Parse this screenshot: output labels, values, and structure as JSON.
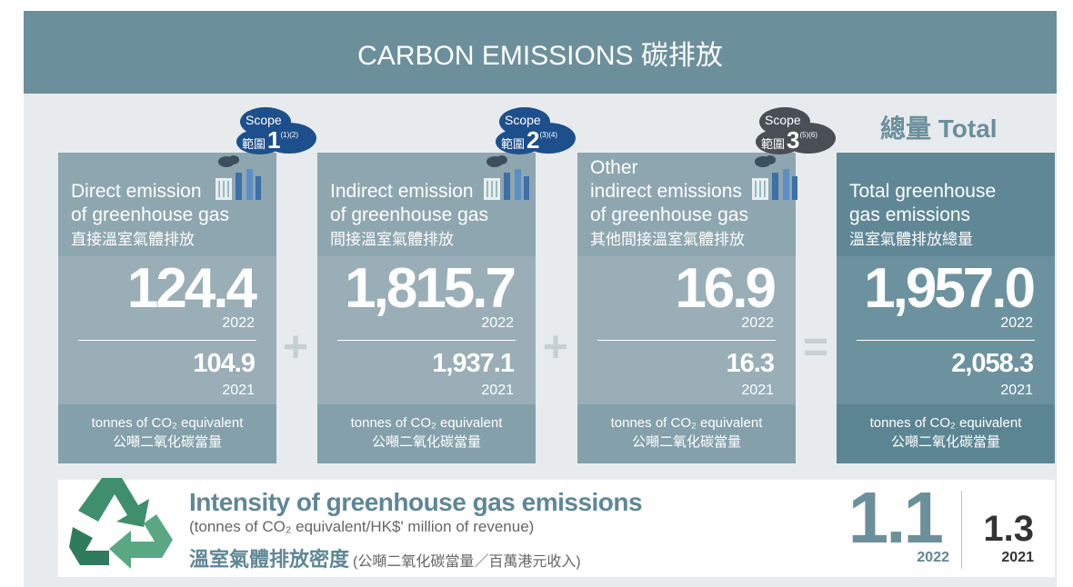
{
  "header": {
    "title": "CARBON EMISSIONS 碳排放"
  },
  "total_heading": "總量 Total",
  "cards": [
    {
      "scope": {
        "label": "Scope",
        "label_cn": "範圍",
        "number": "1",
        "notes": "(1)(2)"
      },
      "title_lines": [
        "Direct emission",
        "of greenhouse gas"
      ],
      "title_cn": "直接溫室氣體排放",
      "value_current": "124.4",
      "year_current": "2022",
      "value_previous": "104.9",
      "year_previous": "2021",
      "unit": "tonnes of CO₂ equivalent",
      "unit_cn": "公噸二氧化碳當量"
    },
    {
      "scope": {
        "label": "Scope",
        "label_cn": "範圍",
        "number": "2",
        "notes": "(3)(4)"
      },
      "title_lines": [
        "Indirect emission",
        "of greenhouse gas"
      ],
      "title_cn": "間接溫室氣體排放",
      "value_current": "1,815.7",
      "year_current": "2022",
      "value_previous": "1,937.1",
      "year_previous": "2021",
      "unit": "tonnes of CO₂ equivalent",
      "unit_cn": "公噸二氧化碳當量"
    },
    {
      "scope": {
        "label": "Scope",
        "label_cn": "範圍",
        "number": "3",
        "notes": "(5)(6)"
      },
      "title_lines": [
        "Other",
        "indirect emissions",
        "of greenhouse gas"
      ],
      "title_cn": "其他間接溫室氣體排放",
      "value_current": "16.9",
      "year_current": "2022",
      "value_previous": "16.3",
      "year_previous": "2021",
      "unit": "tonnes of CO₂ equivalent",
      "unit_cn": "公噸二氧化碳當量"
    },
    {
      "title_lines": [
        "Total greenhouse",
        "gas emissions"
      ],
      "title_cn": "溫室氣體排放總量",
      "value_current": "1,957.0",
      "year_current": "2022",
      "value_previous": "2,058.3",
      "year_previous": "2021",
      "unit": "tonnes of CO₂ equivalent",
      "unit_cn": "公噸二氧化碳當量"
    }
  ],
  "operators": [
    "+",
    "+",
    "="
  ],
  "intensity": {
    "title": "Intensity of greenhouse gas emissions",
    "subtitle": "(tonnes of CO₂ equivalent/HK$' million of revenue)",
    "title_cn": "溫室氣體排放密度",
    "subtitle_cn": "(公噸二氧化碳當量／百萬港元收入)",
    "value_current": "1.1",
    "year_current": "2022",
    "value_previous": "1.3",
    "year_previous": "2021"
  }
}
